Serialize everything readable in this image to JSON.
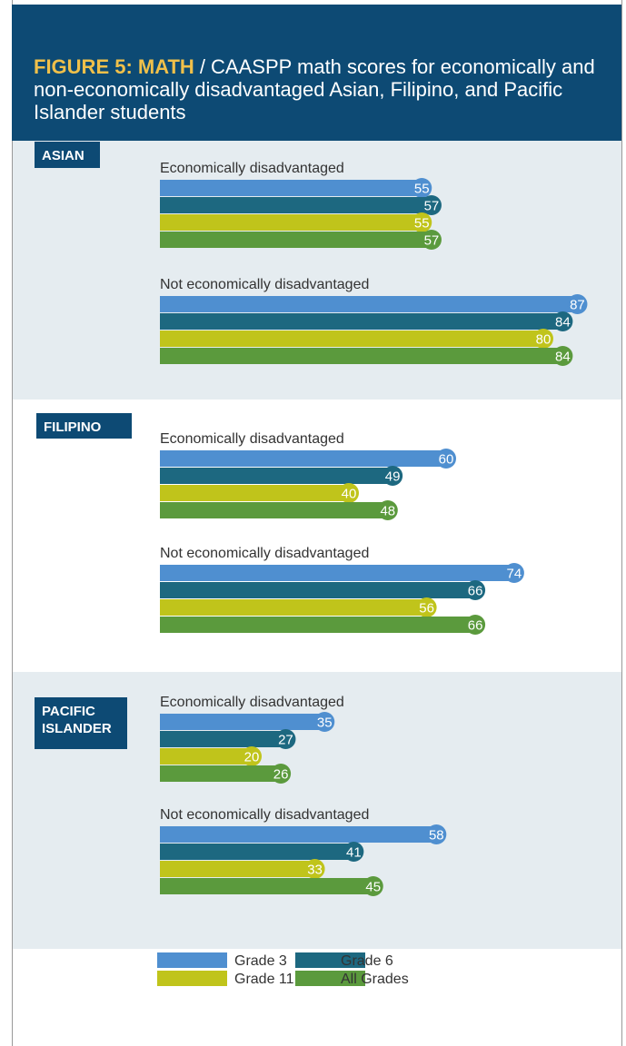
{
  "chart_data": {
    "type": "bar",
    "title_label": "FIGURE 5: MATH",
    "title": "/ CAASPP math  scores for economically and non-economically disadvantaged Asian, Filipino, and Pacific Islander students",
    "groups": [
      "ASIAN",
      "FILIPINO",
      "PACIFIC ISLANDER"
    ],
    "categories": [
      "Economically disadvantaged",
      "Not economically disadvantaged",
      "Economically disadvantaged",
      "Not economically disadvantaged",
      "Economically disadvantaged",
      "Not economically disadvantaged"
    ],
    "series": [
      {
        "name": "Grade 3",
        "color": "#4f8fd0",
        "values": [
          55,
          87,
          60,
          74,
          35,
          58
        ]
      },
      {
        "name": "Grade 6",
        "color": "#1d6880",
        "values": [
          57,
          84,
          49,
          66,
          27,
          41
        ]
      },
      {
        "name": "Grade 11",
        "color": "#c0c41b",
        "values": [
          55,
          80,
          40,
          56,
          20,
          33
        ]
      },
      {
        "name": "All Grades",
        "color": "#5b9a3d",
        "values": [
          57,
          84,
          48,
          66,
          26,
          45
        ]
      }
    ]
  }
}
